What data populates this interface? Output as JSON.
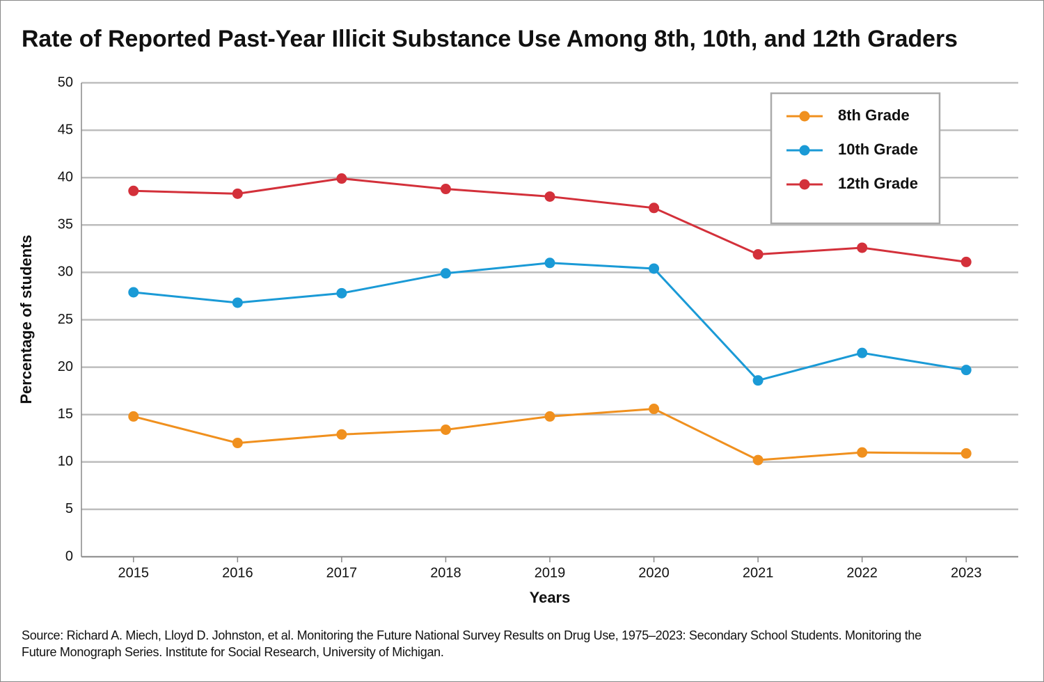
{
  "chart_data": {
    "type": "line",
    "title": "Rate of Reported Past-Year Illicit Substance Use Among 8th, 10th, and 12th Graders",
    "x_label": "Years",
    "y_label": "Percentage of students",
    "categories": [
      "2015",
      "2016",
      "2017",
      "2018",
      "2019",
      "2020",
      "2021",
      "2022",
      "2023"
    ],
    "series": [
      {
        "name": "8th Grade",
        "color": "#f0901e",
        "values": [
          14.8,
          12.0,
          12.9,
          13.4,
          14.8,
          15.6,
          10.2,
          11.0,
          10.9
        ]
      },
      {
        "name": "10th Grade",
        "color": "#1a9ad6",
        "values": [
          27.9,
          26.8,
          27.8,
          29.9,
          31.0,
          30.4,
          18.6,
          21.5,
          19.7
        ]
      },
      {
        "name": "12th Grade",
        "color": "#d3303a",
        "values": [
          38.6,
          38.3,
          39.9,
          38.8,
          38.0,
          36.8,
          31.9,
          32.6,
          31.1
        ]
      }
    ],
    "ylim": [
      0,
      50
    ],
    "yticks": [
      0,
      5,
      10,
      15,
      20,
      25,
      30,
      35,
      40,
      45,
      50
    ],
    "grid": true,
    "legend": "upper-right",
    "source": [
      "Source: Richard A. Miech, Lloyd D. Johnston, et al.  Monitoring the Future National Survey Results on Drug Use, 1975–2023: Secondary School Students. Monitoring the",
      "Future Monograph Series. Institute for Social Research, University of Michigan."
    ]
  }
}
